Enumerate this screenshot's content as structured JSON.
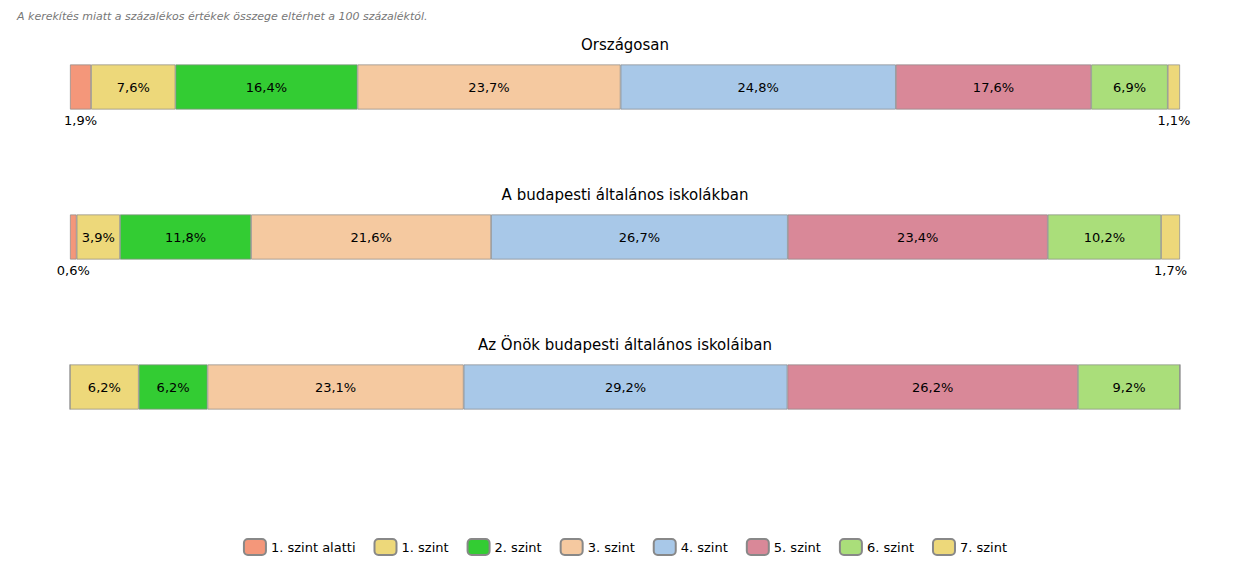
{
  "chart_data": [
    {
      "type": "bar",
      "orientation": "horizontal",
      "stacked": true,
      "title": "Országosan",
      "annotations": [
        "A kerekítés miatt a százalékos értékek összege eltérhet a 100 százaléktól."
      ],
      "categories": [
        null
      ],
      "xlim": [
        0,
        100.0
      ],
      "tick_labels": false,
      "grid": false,
      "data_labels": true,
      "series": [
        {
          "name": "1. szint alatti",
          "color": "#F4977A",
          "values": [
            1.9
          ],
          "value_labels": [
            "1,9%"
          ]
        },
        {
          "name": "1. szint",
          "color": "#EDD87A",
          "values": [
            7.6
          ],
          "value_labels": [
            "7,6%"
          ]
        },
        {
          "name": "2. szint",
          "color": "#33CC33",
          "values": [
            16.4
          ],
          "value_labels": [
            "16,4%"
          ]
        },
        {
          "name": "3. szint",
          "color": "#F5C9A0",
          "values": [
            23.7
          ],
          "value_labels": [
            "23,7%"
          ]
        },
        {
          "name": "4. szint",
          "color": "#A8C8E8",
          "values": [
            24.8
          ],
          "value_labels": [
            "24,8%"
          ]
        },
        {
          "name": "5. szint",
          "color": "#D98898",
          "values": [
            17.6
          ],
          "value_labels": [
            "17,6%"
          ]
        },
        {
          "name": "6. szint",
          "color": "#AADE7A",
          "values": [
            6.9
          ],
          "value_labels": [
            "6,9%"
          ]
        },
        {
          "name": "7. szint",
          "color": "#EDD87A",
          "values": [
            1.1
          ],
          "value_labels": [
            "1,1%"
          ]
        }
      ]
    },
    {
      "type": "bar",
      "orientation": "horizontal",
      "stacked": true,
      "title": "A budapesti általános iskolákban",
      "categories": [
        null
      ],
      "xlim": [
        0,
        99.9
      ],
      "tick_labels": false,
      "grid": false,
      "data_labels": true,
      "series": [
        {
          "name": "1. szint alatti",
          "color": "#F4977A",
          "values": [
            0.6
          ],
          "value_labels": [
            "0,6%"
          ]
        },
        {
          "name": "1. szint",
          "color": "#EDD87A",
          "values": [
            3.9
          ],
          "value_labels": [
            "3,9%"
          ]
        },
        {
          "name": "2. szint",
          "color": "#33CC33",
          "values": [
            11.8
          ],
          "value_labels": [
            "11,8%"
          ]
        },
        {
          "name": "3. szint",
          "color": "#F5C9A0",
          "values": [
            21.6
          ],
          "value_labels": [
            "21,6%"
          ]
        },
        {
          "name": "4. szint",
          "color": "#A8C8E8",
          "values": [
            26.7
          ],
          "value_labels": [
            "26,7%"
          ]
        },
        {
          "name": "5. szint",
          "color": "#D98898",
          "values": [
            23.4
          ],
          "value_labels": [
            "23,4%"
          ]
        },
        {
          "name": "6. szint",
          "color": "#AADE7A",
          "values": [
            10.2
          ],
          "value_labels": [
            "10,2%"
          ]
        },
        {
          "name": "7. szint",
          "color": "#EDD87A",
          "values": [
            1.7
          ],
          "value_labels": [
            "1,7%"
          ]
        }
      ]
    },
    {
      "type": "bar",
      "orientation": "horizontal",
      "stacked": true,
      "title": "Az Önök budapesti általános iskoláiban",
      "categories": [
        null
      ],
      "xlim": [
        0,
        100.1
      ],
      "tick_labels": false,
      "grid": false,
      "data_labels": true,
      "legend": "bottom",
      "series": [
        {
          "name": "1. szint alatti",
          "color": "#F4977A",
          "values": [
            0.0
          ],
          "value_labels": [
            null
          ]
        },
        {
          "name": "1. szint",
          "color": "#EDD87A",
          "values": [
            6.2
          ],
          "value_labels": [
            "6,2%"
          ]
        },
        {
          "name": "2. szint",
          "color": "#33CC33",
          "values": [
            6.2
          ],
          "value_labels": [
            "6,2%"
          ]
        },
        {
          "name": "3. szint",
          "color": "#F5C9A0",
          "values": [
            23.1
          ],
          "value_labels": [
            "23,1%"
          ]
        },
        {
          "name": "4. szint",
          "color": "#A8C8E8",
          "values": [
            29.2
          ],
          "value_labels": [
            "29,2%"
          ]
        },
        {
          "name": "5. szint",
          "color": "#D98898",
          "values": [
            26.2
          ],
          "value_labels": [
            "26,2%"
          ]
        },
        {
          "name": "6. szint",
          "color": "#AADE7A",
          "values": [
            9.2
          ],
          "value_labels": [
            "9,2%"
          ]
        },
        {
          "name": "7. szint",
          "color": "#EDD87A",
          "values": [
            0.0
          ],
          "value_labels": [
            null
          ]
        }
      ]
    }
  ]
}
